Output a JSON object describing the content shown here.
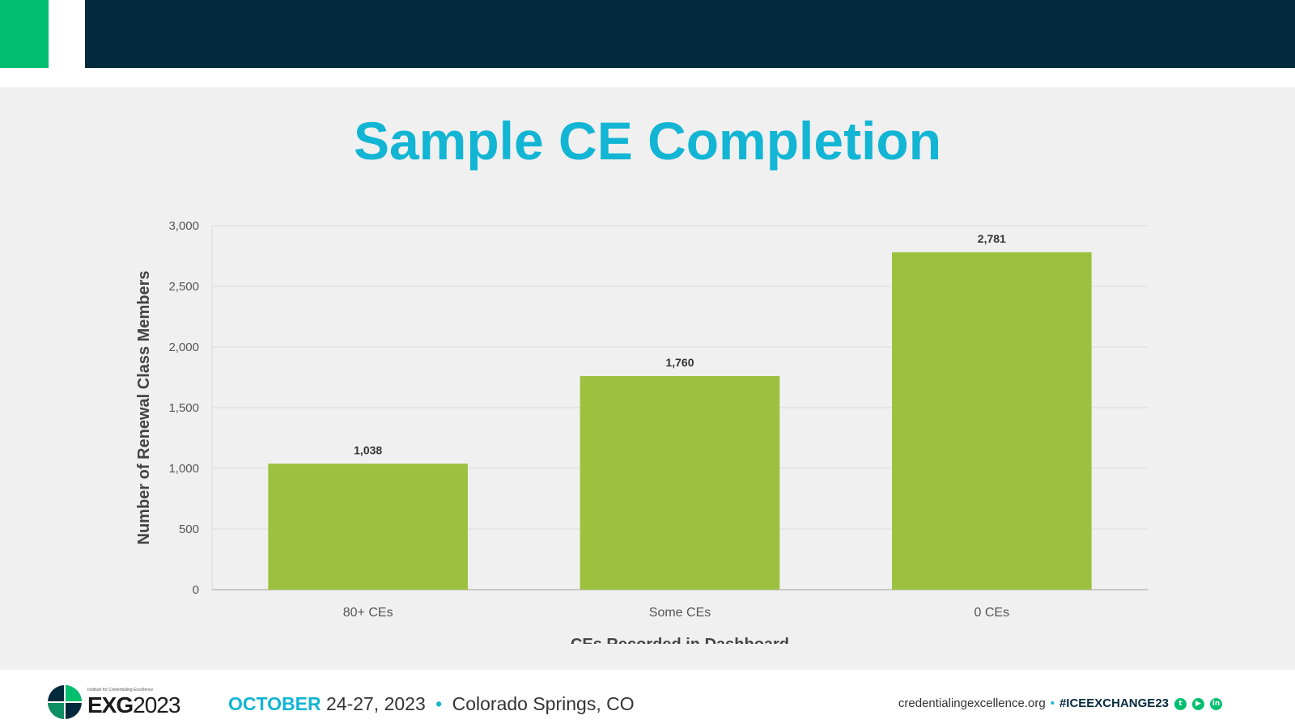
{
  "colors": {
    "accent_green": "#00bf6f",
    "navy": "#03293d",
    "title": "#12b5d3",
    "bar": "#9cc13e"
  },
  "slide": {
    "title": "Sample CE Completion"
  },
  "chart_data": {
    "type": "bar",
    "categories": [
      "80+ CEs",
      "Some CEs",
      "0 CEs"
    ],
    "values": [
      1038,
      1760,
      2781
    ],
    "value_labels": [
      "1,038",
      "1,760",
      "2,781"
    ],
    "ylabel": "Number of Renewal Class Members",
    "xlabel": "CEs Recorded in Dashboard",
    "ylim": [
      0,
      3000
    ],
    "yticks": [
      0,
      500,
      1000,
      1500,
      2000,
      2500,
      3000
    ],
    "ytick_labels": [
      "0",
      "500",
      "1,000",
      "1,500",
      "2,000",
      "2,500",
      "3,000"
    ],
    "grid": true,
    "legend": "none"
  },
  "footer": {
    "logo_tagline": "Institute for Credentialing Excellence",
    "logo_bold": "EXG",
    "logo_year": "2023",
    "event_month": "OCTOBER",
    "event_dates": "24-27, 2023",
    "event_separator": "•",
    "event_location": "Colorado Springs, CO",
    "website": "credentialingexcellence.org",
    "social_separator": "•",
    "hashtag": "#ICEEXCHANGE23",
    "social_icons": [
      "twitter-icon",
      "youtube-icon",
      "linkedin-icon"
    ]
  }
}
